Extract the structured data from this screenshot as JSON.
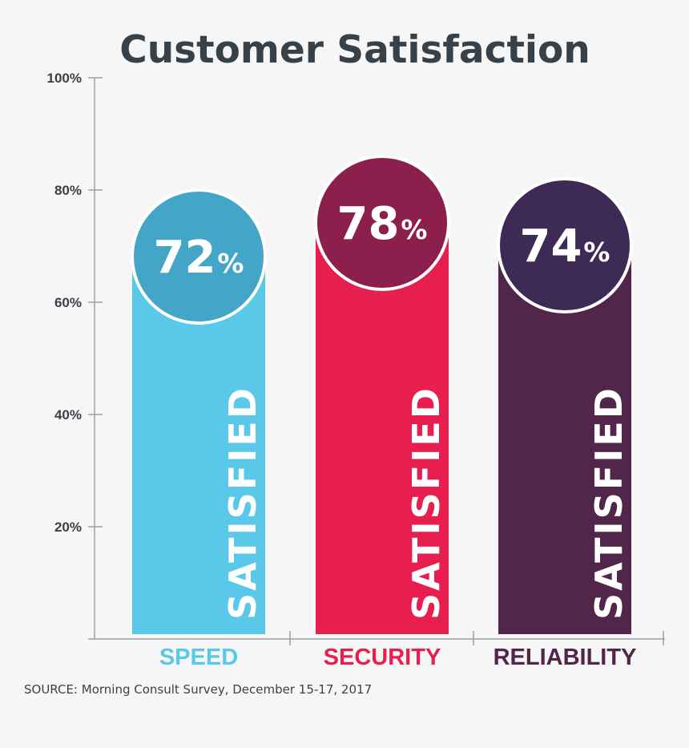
{
  "chart_data": {
    "type": "bar",
    "title": "Customer Satisfaction",
    "categories": [
      "SPEED",
      "SECURITY",
      "RELIABILITY"
    ],
    "values": [
      72,
      78,
      74
    ],
    "value_suffix": "%",
    "bar_label": "SATISFIED",
    "ylim": [
      0,
      100
    ],
    "yticks": [
      20,
      40,
      60,
      80,
      100
    ],
    "ytick_labels": [
      "20%",
      "40%",
      "60%",
      "80%",
      "100%"
    ],
    "grid": false,
    "colors": {
      "bars": [
        "#5ac8e8",
        "#e81e4e",
        "#52264b"
      ],
      "circles": [
        "#44a6c7",
        "#8c1f4b",
        "#3d2b55"
      ],
      "category_text": [
        "#5ac8e8",
        "#e81e4e",
        "#52264b"
      ]
    },
    "source": "SOURCE:  Morning Consult Survey, December 15-17, 2017"
  }
}
